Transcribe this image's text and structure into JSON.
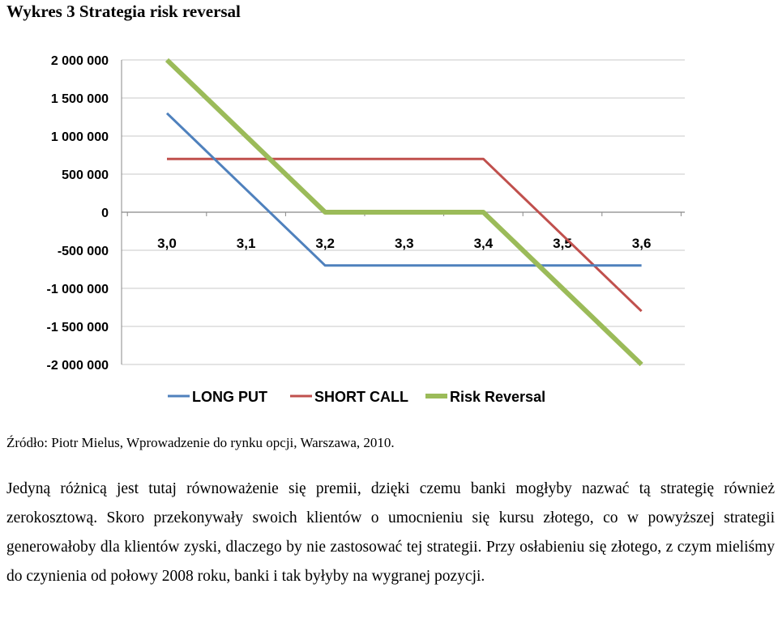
{
  "page": {
    "heading": "Wykres  3 Strategia risk reversal",
    "source": "Źródło: Piotr Mielus, Wprowadzenie do rynku opcji, Warszawa, 2010.",
    "paragraph": "Jedyną różnicą jest tutaj równoważenie się premii, dzięki czemu banki mogłyby nazwać tą strategię również zerokosztową.  Skoro przekonywały swoich klientów o umocnieniu się kursu złotego, co w powyższej strategii generowałoby dla klientów zyski, dlaczego by nie zastosować tej strategii. Przy osłabieniu się złotego, z czym mieliśmy do czynienia od połowy 2008 roku, banki i tak byłyby na wygranej pozycji."
  },
  "chart_data": {
    "type": "line",
    "title": "",
    "xlabel": "",
    "ylabel": "",
    "x_axis_at_zero": true,
    "categories": [
      "3,0",
      "3,1",
      "3,2",
      "3,3",
      "3,4",
      "3,5",
      "3,6"
    ],
    "ylim": [
      -2000000,
      2000000
    ],
    "ytick_values": [
      2000000,
      1500000,
      1000000,
      500000,
      0,
      -500000,
      -1000000,
      -1500000,
      -2000000
    ],
    "ytick_labels": [
      "2 000 000",
      "1 500 000",
      "1 000 000",
      "500 000",
      "0",
      "-500 000",
      "-1 000 000",
      "-1 500 000",
      "-2 000 000"
    ],
    "grid": "horizontal",
    "legend_position": "bottom",
    "series": [
      {
        "name": "LONG PUT",
        "color": "#4f81bd",
        "points": [
          [
            3.0,
            1300000
          ],
          [
            3.2,
            -700000
          ],
          [
            3.6,
            -700000
          ]
        ]
      },
      {
        "name": "SHORT CALL",
        "color": "#c0504d",
        "points": [
          [
            3.0,
            700000
          ],
          [
            3.4,
            700000
          ],
          [
            3.6,
            -1300000
          ]
        ]
      },
      {
        "name": "Risk Reversal",
        "color": "#9bbb59",
        "points": [
          [
            3.0,
            2000000
          ],
          [
            3.2,
            0
          ],
          [
            3.4,
            0
          ],
          [
            3.6,
            -2000000
          ]
        ]
      }
    ]
  }
}
